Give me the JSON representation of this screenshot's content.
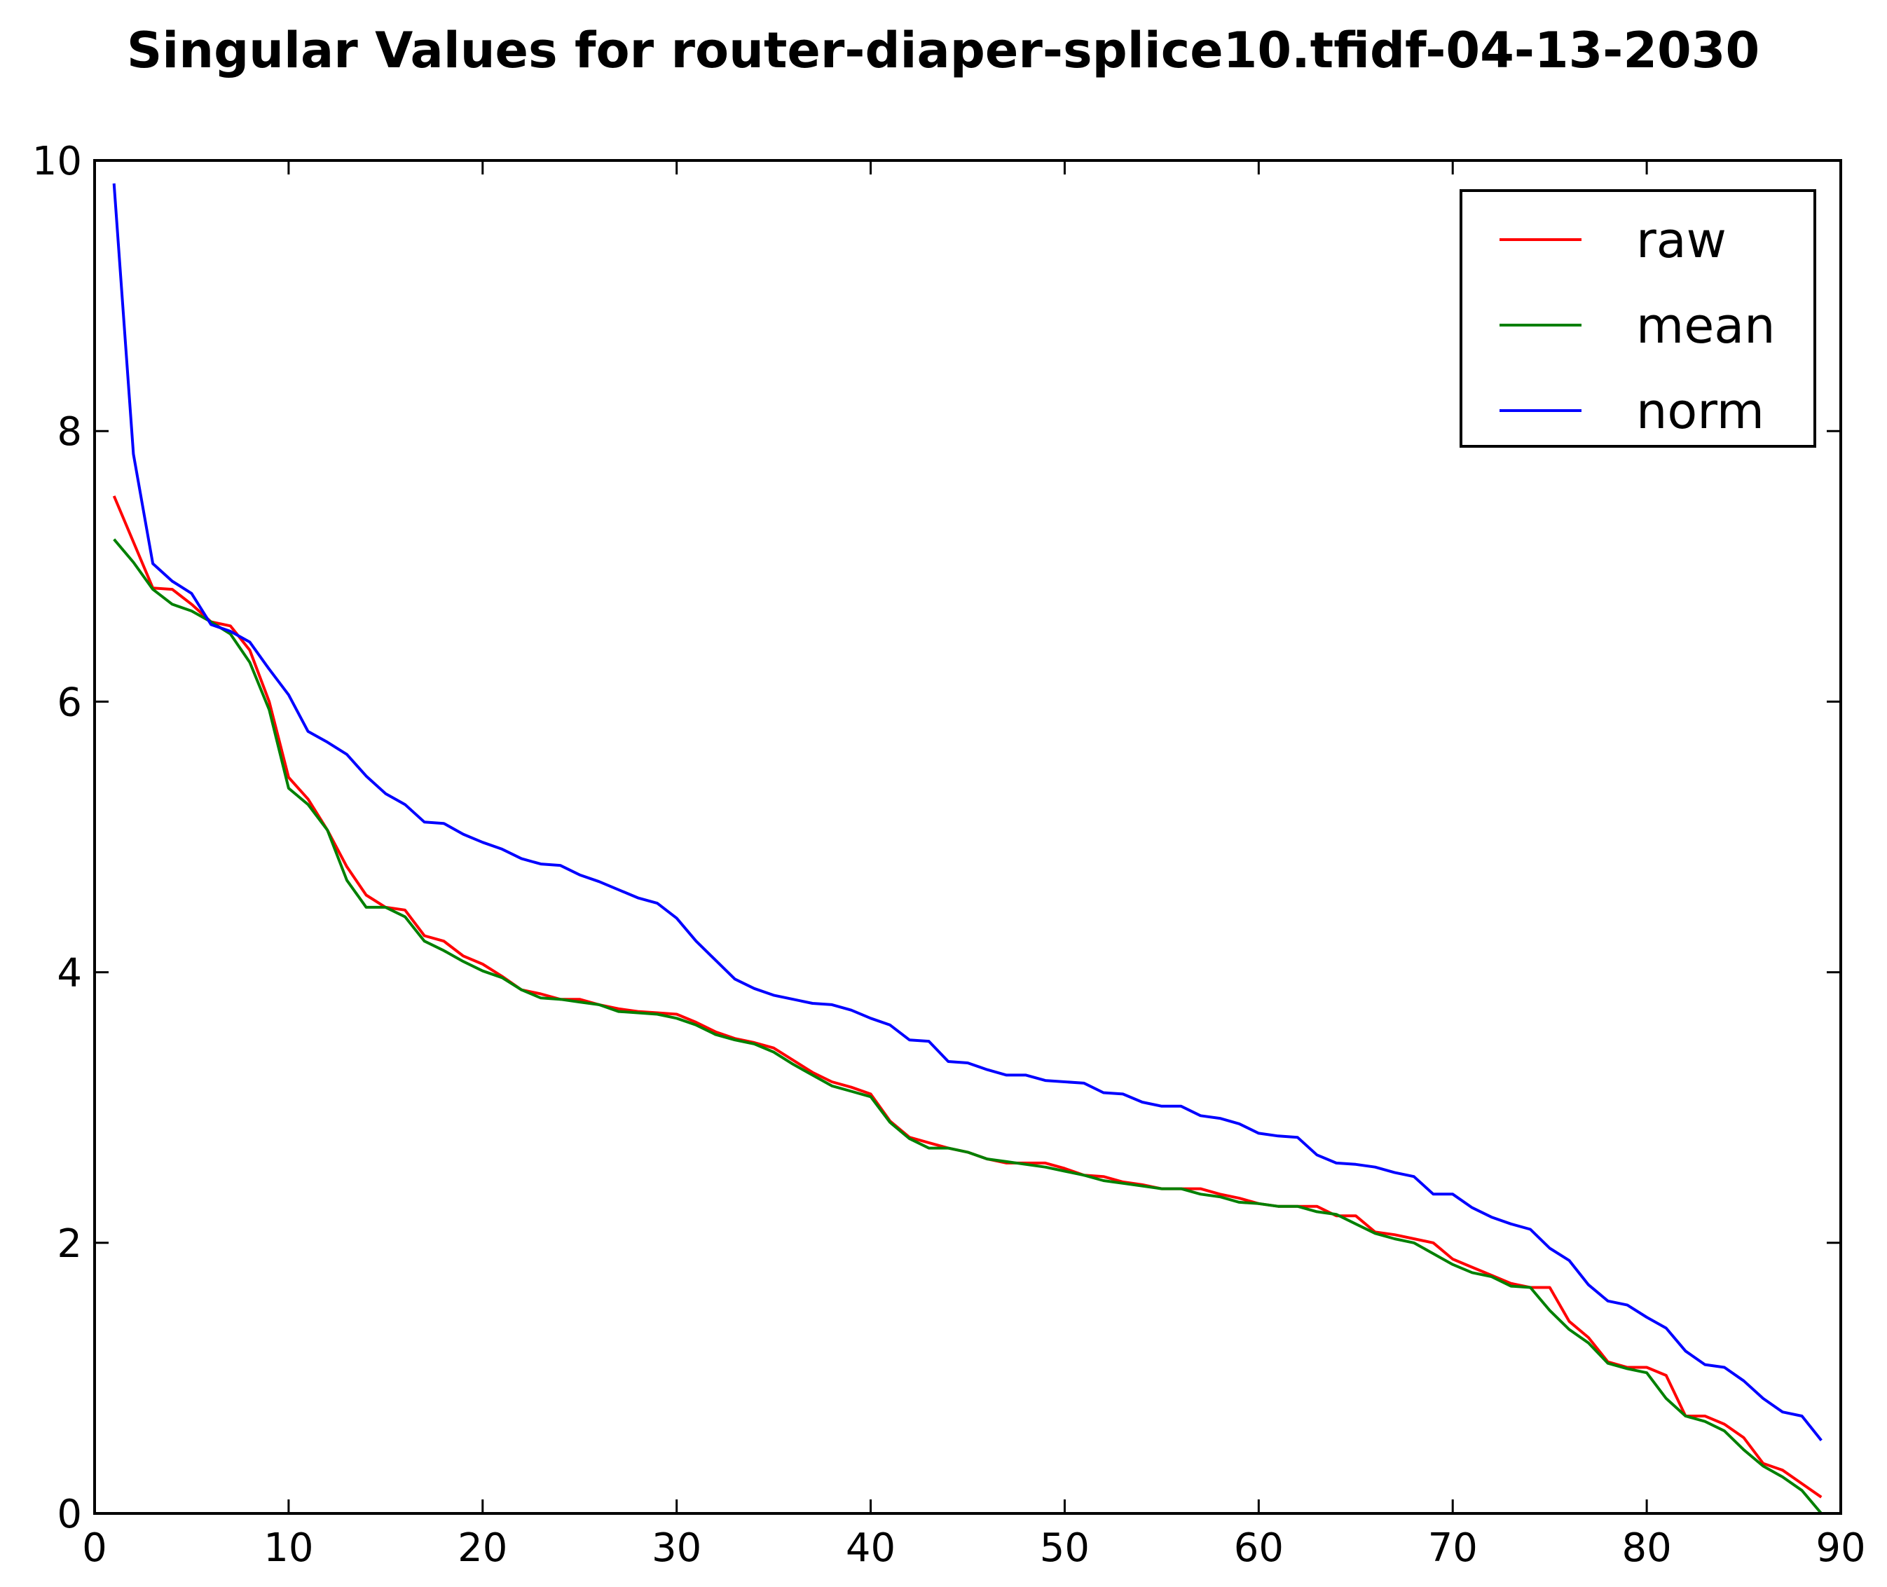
{
  "chart_data": {
    "type": "line",
    "title": "Singular Values for router-diaper-splice10.tfidf-04-13-2030",
    "xlabel": "",
    "ylabel": "",
    "xlim": [
      0,
      90
    ],
    "ylim": [
      0,
      10
    ],
    "xticks": [
      0,
      10,
      20,
      30,
      40,
      50,
      60,
      70,
      80,
      90
    ],
    "yticks": [
      0,
      2,
      4,
      6,
      8,
      10
    ],
    "xtick_labels": [
      "0",
      "10",
      "20",
      "30",
      "40",
      "50",
      "60",
      "70",
      "80",
      "90"
    ],
    "ytick_labels": [
      "0",
      "2",
      "4",
      "6",
      "8",
      "10"
    ],
    "grid": false,
    "legend_position": "top-right",
    "series": [
      {
        "name": "raw",
        "color": "#ff0000",
        "values": [
          7.52,
          7.18,
          6.84,
          6.83,
          6.72,
          6.59,
          6.56,
          6.38,
          6.0,
          5.44,
          5.28,
          5.05,
          4.78,
          4.57,
          4.48,
          4.46,
          4.27,
          4.23,
          4.12,
          4.06,
          3.97,
          3.87,
          3.84,
          3.8,
          3.8,
          3.76,
          3.73,
          3.71,
          3.7,
          3.69,
          3.63,
          3.56,
          3.51,
          3.48,
          3.44,
          3.35,
          3.26,
          3.19,
          3.15,
          3.1,
          2.9,
          2.78,
          2.74,
          2.7,
          2.67,
          2.62,
          2.59,
          2.59,
          2.59,
          2.55,
          2.5,
          2.49,
          2.45,
          2.43,
          2.4,
          2.4,
          2.4,
          2.36,
          2.33,
          2.29,
          2.27,
          2.27,
          2.27,
          2.2,
          2.2,
          2.08,
          2.06,
          2.03,
          2.0,
          1.88,
          1.82,
          1.76,
          1.7,
          1.67,
          1.67,
          1.42,
          1.3,
          1.12,
          1.08,
          1.08,
          1.02,
          0.72,
          0.72,
          0.66,
          0.56,
          0.37,
          0.32,
          0.22,
          0.12
        ]
      },
      {
        "name": "mean",
        "color": "#008000",
        "values": [
          7.2,
          7.03,
          6.83,
          6.72,
          6.67,
          6.59,
          6.5,
          6.29,
          5.94,
          5.36,
          5.24,
          5.05,
          4.68,
          4.48,
          4.48,
          4.41,
          4.23,
          4.16,
          4.08,
          4.01,
          3.96,
          3.87,
          3.81,
          3.8,
          3.78,
          3.76,
          3.71,
          3.7,
          3.69,
          3.66,
          3.61,
          3.54,
          3.5,
          3.47,
          3.41,
          3.32,
          3.24,
          3.16,
          3.12,
          3.08,
          2.89,
          2.77,
          2.7,
          2.7,
          2.67,
          2.62,
          2.6,
          2.58,
          2.56,
          2.53,
          2.5,
          2.46,
          2.44,
          2.42,
          2.4,
          2.4,
          2.36,
          2.34,
          2.3,
          2.29,
          2.27,
          2.27,
          2.23,
          2.21,
          2.14,
          2.07,
          2.03,
          2.0,
          1.92,
          1.84,
          1.78,
          1.75,
          1.68,
          1.67,
          1.5,
          1.36,
          1.26,
          1.11,
          1.07,
          1.04,
          0.85,
          0.72,
          0.68,
          0.61,
          0.47,
          0.35,
          0.27,
          0.17,
          0.0
        ]
      },
      {
        "name": "norm",
        "color": "#0000ff",
        "values": [
          9.83,
          7.83,
          7.02,
          6.89,
          6.8,
          6.57,
          6.52,
          6.44,
          6.24,
          6.05,
          5.78,
          5.7,
          5.61,
          5.45,
          5.32,
          5.24,
          5.11,
          5.1,
          5.02,
          4.96,
          4.91,
          4.84,
          4.8,
          4.79,
          4.72,
          4.67,
          4.61,
          4.55,
          4.51,
          4.4,
          4.23,
          4.09,
          3.95,
          3.88,
          3.83,
          3.8,
          3.77,
          3.76,
          3.72,
          3.66,
          3.61,
          3.5,
          3.49,
          3.34,
          3.33,
          3.28,
          3.24,
          3.24,
          3.2,
          3.19,
          3.18,
          3.11,
          3.1,
          3.04,
          3.01,
          3.01,
          2.94,
          2.92,
          2.88,
          2.81,
          2.79,
          2.78,
          2.65,
          2.59,
          2.58,
          2.56,
          2.52,
          2.49,
          2.36,
          2.36,
          2.26,
          2.19,
          2.14,
          2.1,
          1.96,
          1.87,
          1.69,
          1.57,
          1.54,
          1.45,
          1.37,
          1.2,
          1.1,
          1.08,
          0.98,
          0.85,
          0.75,
          0.72,
          0.54
        ]
      }
    ]
  }
}
